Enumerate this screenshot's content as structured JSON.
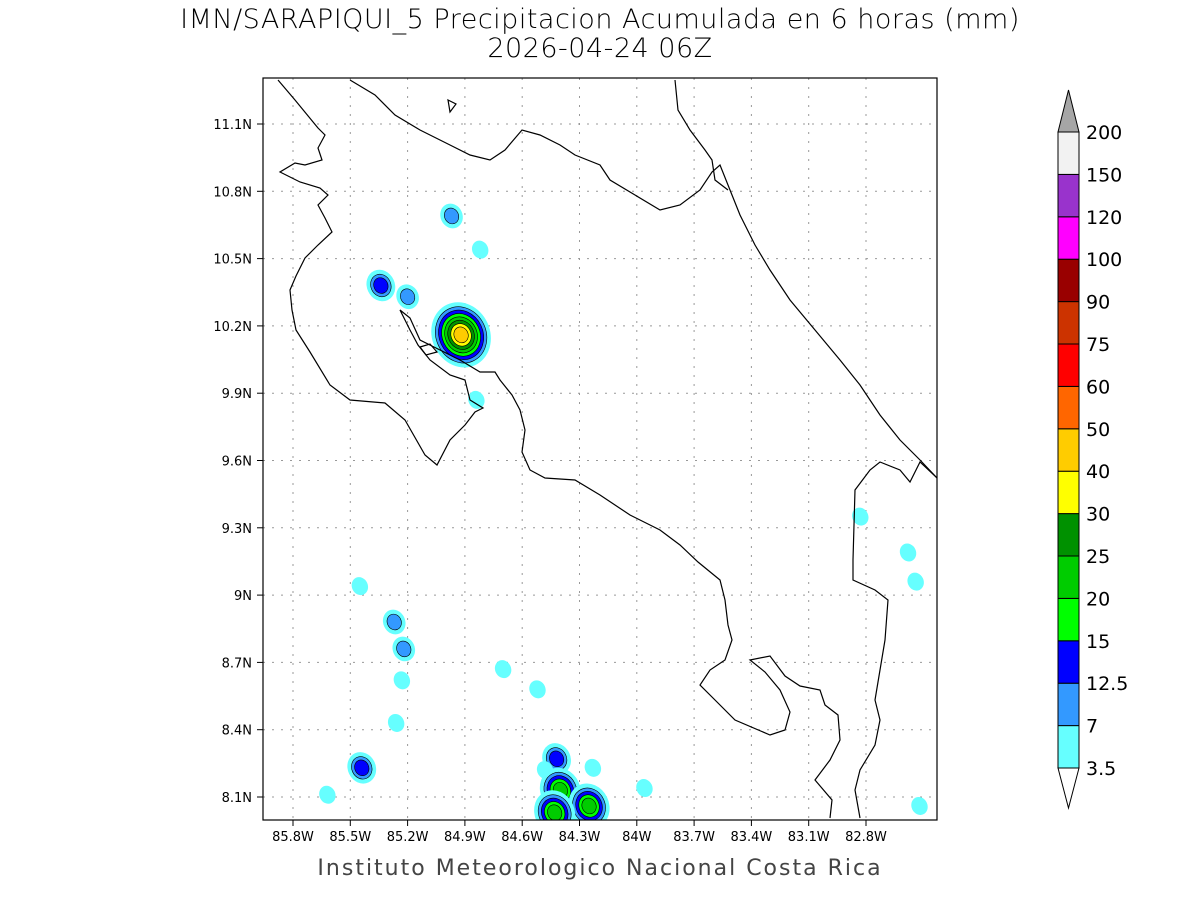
{
  "title_line1": "IMN/SARAPIQUI_5 Precipitacion Acumulada en 6 horas (mm)",
  "title_line2": "2026-04-24 06Z",
  "footer": "Instituto Meteorologico Nacional Costa Rica",
  "map": {
    "lon_ticks": [
      "85.8W",
      "85.5W",
      "85.2W",
      "84.9W",
      "84.6W",
      "84.3W",
      "84W",
      "83.7W",
      "83.4W",
      "83.1W",
      "82.8W"
    ],
    "lon_values": [
      -85.8,
      -85.5,
      -85.2,
      -84.9,
      -84.6,
      -84.3,
      -84.0,
      -83.7,
      -83.4,
      -83.1,
      -82.8
    ],
    "lat_ticks": [
      "11.1N",
      "10.8N",
      "10.5N",
      "10.2N",
      "9.9N",
      "9.6N",
      "9.3N",
      "9N",
      "8.7N",
      "8.4N",
      "8.1N"
    ],
    "lat_values": [
      11.1,
      10.8,
      10.5,
      10.2,
      9.9,
      9.6,
      9.3,
      9.0,
      8.7,
      8.4,
      8.1
    ],
    "precip_cells": [
      {
        "lon": -84.97,
        "lat": 10.69,
        "max_mm": 7
      },
      {
        "lon": -84.82,
        "lat": 10.54,
        "max_mm": 3.5
      },
      {
        "lon": -85.34,
        "lat": 10.38,
        "max_mm": 12.5
      },
      {
        "lon": -85.2,
        "lat": 10.33,
        "max_mm": 7
      },
      {
        "lon": -84.92,
        "lat": 10.16,
        "max_mm": 40
      },
      {
        "lon": -84.84,
        "lat": 9.87,
        "max_mm": 3.5
      },
      {
        "lon": -85.45,
        "lat": 9.04,
        "max_mm": 3.5
      },
      {
        "lon": -85.27,
        "lat": 8.88,
        "max_mm": 7
      },
      {
        "lon": -85.22,
        "lat": 8.76,
        "max_mm": 7
      },
      {
        "lon": -85.23,
        "lat": 8.62,
        "max_mm": 3.5
      },
      {
        "lon": -85.26,
        "lat": 8.43,
        "max_mm": 3.5
      },
      {
        "lon": -84.7,
        "lat": 8.67,
        "max_mm": 3.5
      },
      {
        "lon": -84.52,
        "lat": 8.58,
        "max_mm": 3.5
      },
      {
        "lon": -85.44,
        "lat": 8.23,
        "max_mm": 12.5
      },
      {
        "lon": -85.62,
        "lat": 8.11,
        "max_mm": 3.5
      },
      {
        "lon": -84.42,
        "lat": 8.27,
        "max_mm": 12.5
      },
      {
        "lon": -84.48,
        "lat": 8.22,
        "max_mm": 3.5
      },
      {
        "lon": -84.4,
        "lat": 8.13,
        "max_mm": 20
      },
      {
        "lon": -84.25,
        "lat": 8.06,
        "max_mm": 20
      },
      {
        "lon": -84.43,
        "lat": 8.03,
        "max_mm": 20
      },
      {
        "lon": -84.23,
        "lat": 8.23,
        "max_mm": 3.5
      },
      {
        "lon": -83.96,
        "lat": 8.14,
        "max_mm": 3.5
      },
      {
        "lon": -82.83,
        "lat": 9.35,
        "max_mm": 3.5
      },
      {
        "lon": -82.58,
        "lat": 9.19,
        "max_mm": 3.5
      },
      {
        "lon": -82.54,
        "lat": 9.06,
        "max_mm": 3.5
      },
      {
        "lon": -82.52,
        "lat": 8.06,
        "max_mm": 3.5
      }
    ]
  },
  "colorbar": {
    "labels": [
      "3.5",
      "7",
      "12.5",
      "15",
      "20",
      "25",
      "30",
      "40",
      "50",
      "60",
      "75",
      "90",
      "100",
      "120",
      "150",
      "200"
    ],
    "levels": [
      3.5,
      7,
      12.5,
      15,
      20,
      25,
      30,
      40,
      50,
      60,
      75,
      90,
      100,
      120,
      150,
      200
    ],
    "colors": [
      "#66ffff",
      "#3399ff",
      "#0000ff",
      "#00ff00",
      "#00cc00",
      "#009100",
      "#ffff00",
      "#ffcc00",
      "#ff6600",
      "#ff0000",
      "#cc3300",
      "#990000",
      "#ff00ff",
      "#9933cc",
      "#f2f2f2"
    ],
    "over_color": "#a6a6a6",
    "under_color": "#ffffff"
  }
}
